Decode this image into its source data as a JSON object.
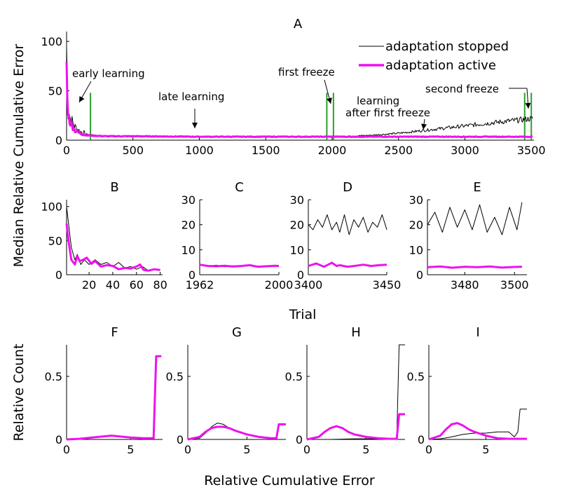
{
  "figure": {
    "ylabel_main": "Median Relative Cumulative Error",
    "xlabel_middle": "Trial",
    "ylabel_bottom": "Relative Count",
    "xlabel_bottom": "Relative Cumulative Error"
  },
  "colors": {
    "stopped": "#000000",
    "active": "#ee11ee",
    "freeze": "#2aa02a"
  },
  "legend": {
    "stopped": "adaptation stopped",
    "active": "adaptation active"
  },
  "chart_data": [
    {
      "panel": "A",
      "type": "line",
      "title": "A",
      "xlim": [
        0,
        3520
      ],
      "ylim": [
        0,
        110
      ],
      "xticks": [
        0,
        500,
        1000,
        1500,
        2000,
        2500,
        3000,
        3500
      ],
      "yticks": [
        0,
        50,
        100
      ],
      "freeze_lines_x": [
        180,
        1960,
        2010,
        3450,
        3500
      ],
      "annotations": [
        {
          "text": "early learning"
        },
        {
          "text": "late learning"
        },
        {
          "text": "first freeze"
        },
        {
          "text": "learning"
        },
        {
          "text": "after first freeze"
        },
        {
          "text": "second freeze"
        }
      ],
      "series": [
        {
          "name": "adaptation stopped",
          "x": [
            0,
            10,
            30,
            60,
            100,
            150,
            200,
            300,
            500,
            1000,
            1500,
            1960,
            2100,
            2300,
            2500,
            2700,
            2900,
            3100,
            3300,
            3450,
            3510
          ],
          "y": [
            95,
            30,
            22,
            14,
            9,
            6,
            5,
            4,
            4,
            3.5,
            3.5,
            3.5,
            4,
            5,
            7,
            10,
            13,
            16,
            19,
            21,
            22
          ]
        },
        {
          "name": "adaptation active",
          "x": [
            0,
            5,
            20,
            60,
            100,
            150,
            200,
            300,
            500,
            1000,
            2000,
            2500,
            3000,
            3510
          ],
          "y": [
            78,
            40,
            20,
            10,
            7,
            5,
            4.5,
            4,
            4,
            3.5,
            3.5,
            3.5,
            3.5,
            3.5
          ]
        }
      ]
    },
    {
      "panel": "B",
      "type": "line",
      "title": "B",
      "xlim": [
        1,
        82
      ],
      "ylim": [
        0,
        110
      ],
      "xticks": [
        20,
        40,
        60,
        80
      ],
      "yticks": [
        0,
        50,
        100
      ],
      "series": [
        {
          "name": "adaptation stopped",
          "x": [
            1,
            3,
            5,
            8,
            10,
            13,
            16,
            20,
            25,
            30,
            35,
            40,
            45,
            50,
            55,
            60,
            65,
            70,
            75,
            80
          ],
          "y": [
            100,
            70,
            40,
            22,
            30,
            15,
            22,
            15,
            22,
            15,
            18,
            12,
            18,
            10,
            12,
            8,
            12,
            6,
            8,
            6
          ]
        },
        {
          "name": "adaptation active",
          "x": [
            1,
            3,
            5,
            8,
            10,
            12,
            15,
            18,
            22,
            25,
            30,
            35,
            40,
            45,
            50,
            55,
            60,
            63,
            66,
            70,
            75,
            80
          ],
          "y": [
            75,
            45,
            22,
            15,
            28,
            20,
            22,
            25,
            16,
            20,
            12,
            14,
            13,
            8,
            10,
            9,
            12,
            15,
            7,
            6,
            8,
            7
          ]
        }
      ]
    },
    {
      "panel": "C",
      "type": "line",
      "title": "C",
      "xlim": [
        1962,
        2000
      ],
      "ylim": [
        0,
        30
      ],
      "xticks": [
        1962,
        2000
      ],
      "yticks": [
        0,
        10,
        20,
        30
      ],
      "series": [
        {
          "name": "adaptation stopped",
          "x": [
            1962,
            1966,
            1970,
            1974,
            1978,
            1982,
            1986,
            1990,
            1994,
            1998,
            2000
          ],
          "y": [
            4,
            3.5,
            3.8,
            3.2,
            3.6,
            3.4,
            3.7,
            3.3,
            3.5,
            3.8,
            3.5
          ]
        },
        {
          "name": "adaptation active",
          "x": [
            1962,
            1966,
            1970,
            1974,
            1978,
            1982,
            1986,
            1990,
            1994,
            1998,
            2000
          ],
          "y": [
            4,
            3.5,
            3.4,
            3.6,
            3.3,
            3.5,
            3.8,
            3.2,
            3.4,
            3.6,
            3.5
          ]
        }
      ]
    },
    {
      "panel": "D",
      "type": "line",
      "title": "D",
      "xlim": [
        3400,
        3450
      ],
      "ylim": [
        0,
        30
      ],
      "xticks": [
        3400,
        3450
      ],
      "yticks": [
        0,
        10,
        20,
        30
      ],
      "series": [
        {
          "name": "adaptation stopped",
          "x": [
            3400,
            3403,
            3406,
            3409,
            3412,
            3415,
            3418,
            3420,
            3423,
            3426,
            3429,
            3432,
            3435,
            3438,
            3441,
            3444,
            3447,
            3450
          ],
          "y": [
            20,
            18,
            22,
            19,
            24,
            18,
            21,
            17,
            24,
            16,
            22,
            19,
            23,
            17,
            21,
            19,
            24,
            18
          ]
        },
        {
          "name": "adaptation active",
          "x": [
            3400,
            3405,
            3410,
            3415,
            3418,
            3420,
            3425,
            3430,
            3435,
            3440,
            3445,
            3450
          ],
          "y": [
            3.5,
            4.5,
            3.2,
            4.8,
            3.5,
            3.8,
            3.2,
            3.6,
            4,
            3.5,
            3.8,
            4
          ]
        }
      ]
    },
    {
      "panel": "E",
      "type": "line",
      "title": "E",
      "xlim": [
        3465,
        3505
      ],
      "ylim": [
        0,
        30
      ],
      "xticks": [
        3480,
        3500
      ],
      "yticks": [
        0,
        10,
        20,
        30
      ],
      "series": [
        {
          "name": "adaptation stopped",
          "x": [
            3465,
            3468,
            3471,
            3474,
            3477,
            3480,
            3483,
            3486,
            3489,
            3492,
            3495,
            3498,
            3501,
            3503
          ],
          "y": [
            20,
            25,
            17,
            27,
            19,
            26,
            18,
            28,
            17,
            23,
            16,
            27,
            18,
            29
          ]
        },
        {
          "name": "adaptation active",
          "x": [
            3465,
            3470,
            3475,
            3480,
            3485,
            3490,
            3495,
            3500,
            3503
          ],
          "y": [
            3,
            3.3,
            2.8,
            3.2,
            3,
            3.3,
            2.9,
            3.1,
            3.2
          ]
        }
      ]
    },
    {
      "panel": "F",
      "type": "line",
      "title": "F",
      "xlim": [
        0,
        7.5
      ],
      "ylim": [
        0,
        0.75
      ],
      "xticks": [
        0,
        5
      ],
      "yticks": [
        0,
        0.5
      ],
      "series": [
        {
          "name": "adaptation stopped",
          "x": [
            0,
            1,
            2,
            3,
            3.5,
            4,
            5,
            6,
            6.8,
            7.0,
            7.2,
            7.4
          ],
          "y": [
            0,
            0.005,
            0.015,
            0.025,
            0.03,
            0.025,
            0.015,
            0.01,
            0.01,
            0.66,
            0.66,
            0.66
          ]
        },
        {
          "name": "adaptation active",
          "x": [
            0,
            1,
            2,
            3,
            3.5,
            4,
            5,
            6,
            6.8,
            7.0,
            7.2,
            7.4
          ],
          "y": [
            0,
            0.005,
            0.015,
            0.025,
            0.03,
            0.025,
            0.015,
            0.01,
            0.01,
            0.66,
            0.66,
            0.66
          ]
        }
      ]
    },
    {
      "panel": "G",
      "type": "line",
      "title": "G",
      "xlim": [
        0,
        8.3
      ],
      "ylim": [
        0,
        0.75
      ],
      "xticks": [
        0,
        5
      ],
      "yticks": [
        0,
        0.5
      ],
      "series": [
        {
          "name": "adaptation stopped",
          "x": [
            0,
            1,
            1.5,
            2,
            2.5,
            3,
            3.5,
            4,
            5,
            6,
            7,
            7.5,
            7.7,
            8.0,
            8.3
          ],
          "y": [
            0,
            0.01,
            0.05,
            0.1,
            0.13,
            0.12,
            0.09,
            0.07,
            0.04,
            0.02,
            0.01,
            0.01,
            0.12,
            0.12,
            0.12
          ]
        },
        {
          "name": "adaptation active",
          "x": [
            0,
            1,
            1.5,
            2,
            2.5,
            3,
            3.5,
            4,
            5,
            6,
            7,
            7.5,
            7.7,
            8.0,
            8.3
          ],
          "y": [
            0,
            0.02,
            0.06,
            0.09,
            0.1,
            0.1,
            0.09,
            0.07,
            0.04,
            0.02,
            0.01,
            0.01,
            0.12,
            0.12,
            0.12
          ]
        }
      ]
    },
    {
      "panel": "H",
      "type": "line",
      "title": "H",
      "xlim": [
        0,
        8.3
      ],
      "ylim": [
        0,
        0.75
      ],
      "xticks": [
        0,
        5
      ],
      "yticks": [
        0,
        0.5
      ],
      "series": [
        {
          "name": "adaptation stopped",
          "x": [
            0,
            2,
            4,
            6,
            7,
            7.6,
            7.8,
            8.0,
            8.3
          ],
          "y": [
            0,
            0,
            0.005,
            0.005,
            0.005,
            0.005,
            0.75,
            0.75,
            0.75
          ]
        },
        {
          "name": "adaptation active",
          "x": [
            0,
            1,
            1.5,
            2,
            2.5,
            3,
            3.5,
            4,
            5,
            6,
            7,
            7.6,
            7.8,
            8.0,
            8.3
          ],
          "y": [
            0,
            0.02,
            0.06,
            0.09,
            0.105,
            0.09,
            0.06,
            0.04,
            0.02,
            0.01,
            0.005,
            0.005,
            0.2,
            0.2,
            0.2
          ]
        }
      ]
    },
    {
      "panel": "I",
      "type": "line",
      "title": "I",
      "xlim": [
        0,
        8.6
      ],
      "ylim": [
        0,
        0.75
      ],
      "xticks": [
        0,
        5
      ],
      "yticks": [
        0,
        0.5
      ],
      "series": [
        {
          "name": "adaptation stopped",
          "x": [
            0,
            1,
            2,
            3,
            4,
            5,
            6,
            7,
            7.5,
            7.8,
            8.0,
            8.3,
            8.6
          ],
          "y": [
            0,
            0.005,
            0.02,
            0.04,
            0.05,
            0.05,
            0.06,
            0.06,
            0.02,
            0.06,
            0.24,
            0.24,
            0.24
          ]
        },
        {
          "name": "adaptation active",
          "x": [
            0,
            1,
            1.5,
            2,
            2.5,
            3,
            3.5,
            4,
            5,
            6,
            7,
            7.5,
            8.0,
            8.6
          ],
          "y": [
            0,
            0.03,
            0.08,
            0.12,
            0.13,
            0.11,
            0.08,
            0.06,
            0.03,
            0.01,
            0.005,
            0.005,
            0.005,
            0.005
          ]
        }
      ]
    }
  ]
}
